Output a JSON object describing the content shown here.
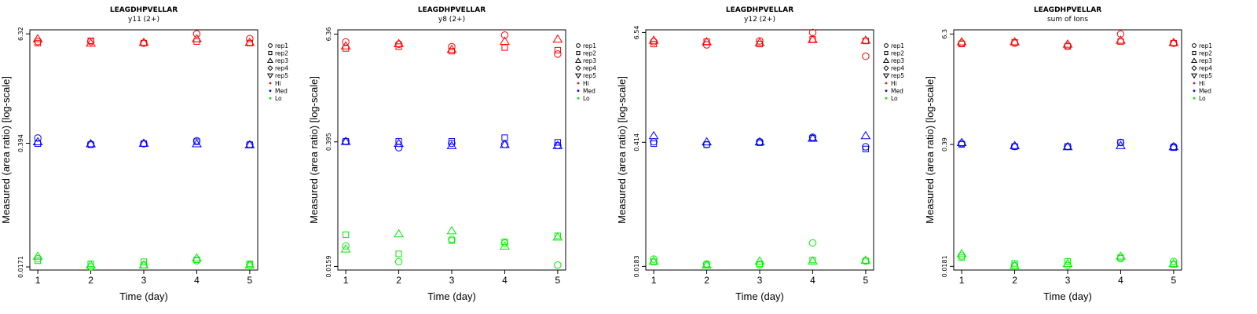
{
  "legend": {
    "shapes": [
      {
        "label": "rep1",
        "shape": "circle"
      },
      {
        "label": "rep2",
        "shape": "square"
      },
      {
        "label": "rep3",
        "shape": "triangle-up"
      },
      {
        "label": "rep4",
        "shape": "diamond"
      },
      {
        "label": "rep5",
        "shape": "triangle-down"
      }
    ],
    "levels": [
      {
        "label": "Hi",
        "color": "#ff0000"
      },
      {
        "label": "Med",
        "color": "#0000ff"
      },
      {
        "label": "Lo",
        "color": "#00ee00"
      }
    ]
  },
  "chart_data": [
    {
      "type": "scatter",
      "title": "LEAGDHPVELLAR",
      "subtitle": "y11 (2+)",
      "xlabel": "Time (day)",
      "ylabel": "Measured (area ratio) [log-scale]",
      "log_y": true,
      "xlim": [
        0.85,
        5.15
      ],
      "ylim": [
        0.0158,
        7.0
      ],
      "x_ticks": [
        "1",
        "2",
        "3",
        "4",
        "5"
      ],
      "y_ticks": [
        {
          "value": 0.0171,
          "label": "0.0171"
        },
        {
          "value": 0.394,
          "label": "0.394"
        },
        {
          "value": 6.32,
          "label": "6.32"
        }
      ],
      "grid": false,
      "legend_position": "right",
      "series": [
        {
          "rep": "rep1",
          "level": "Hi",
          "x": [
            1,
            2,
            3,
            4,
            5
          ],
          "y": [
            5.2,
            5.2,
            5.0,
            6.32,
            5.6
          ]
        },
        {
          "rep": "rep2",
          "level": "Hi",
          "x": [
            1,
            2,
            3,
            4,
            5
          ],
          "y": [
            5.0,
            5.3,
            5.0,
            5.2,
            5.0
          ]
        },
        {
          "rep": "rep3",
          "level": "Hi",
          "x": [
            1,
            2,
            3,
            4,
            5
          ],
          "y": [
            5.6,
            5.0,
            5.1,
            5.6,
            5.1
          ]
        },
        {
          "rep": "rep1",
          "level": "Med",
          "x": [
            1,
            2,
            3,
            4,
            5
          ],
          "y": [
            0.45,
            0.385,
            0.39,
            0.42,
            0.38
          ]
        },
        {
          "rep": "rep2",
          "level": "Med",
          "x": [
            1,
            2,
            3,
            4,
            5
          ],
          "y": [
            0.39,
            0.38,
            0.39,
            0.41,
            0.38
          ]
        },
        {
          "rep": "rep3",
          "level": "Med",
          "x": [
            1,
            2,
            3,
            4,
            5
          ],
          "y": [
            0.41,
            0.39,
            0.395,
            0.39,
            0.38
          ]
        },
        {
          "rep": "rep1",
          "level": "Lo",
          "x": [
            1,
            2,
            3,
            4,
            5
          ],
          "y": [
            0.021,
            0.0171,
            0.018,
            0.02,
            0.018
          ]
        },
        {
          "rep": "rep2",
          "level": "Lo",
          "x": [
            1,
            2,
            3,
            4,
            5
          ],
          "y": [
            0.02,
            0.0185,
            0.0195,
            0.0205,
            0.0185
          ]
        },
        {
          "rep": "rep3",
          "level": "Lo",
          "x": [
            1,
            2,
            3,
            4,
            5
          ],
          "y": [
            0.0225,
            0.018,
            0.018,
            0.0215,
            0.018
          ]
        }
      ]
    },
    {
      "type": "scatter",
      "title": "LEAGDHPVELLAR",
      "subtitle": "y8 (2+)",
      "xlabel": "Time (day)",
      "ylabel": "Measured (area ratio) [log-scale]",
      "log_y": true,
      "xlim": [
        0.85,
        5.15
      ],
      "ylim": [
        0.0145,
        7.1
      ],
      "x_ticks": [
        "1",
        "2",
        "3",
        "4",
        "5"
      ],
      "y_ticks": [
        {
          "value": 0.0159,
          "label": "0.0159"
        },
        {
          "value": 0.395,
          "label": "0.395"
        },
        {
          "value": 6.36,
          "label": "6.36"
        }
      ],
      "grid": false,
      "legend_position": "right",
      "series": [
        {
          "rep": "rep1",
          "level": "Hi",
          "x": [
            1,
            2,
            3,
            4,
            5
          ],
          "y": [
            5.2,
            4.9,
            4.6,
            6.2,
            3.8
          ]
        },
        {
          "rep": "rep2",
          "level": "Hi",
          "x": [
            1,
            2,
            3,
            4,
            5
          ],
          "y": [
            4.4,
            4.6,
            4.1,
            4.5,
            4.2
          ]
        },
        {
          "rep": "rep3",
          "level": "Hi",
          "x": [
            1,
            2,
            3,
            4,
            5
          ],
          "y": [
            4.7,
            5.0,
            4.3,
            5.3,
            5.6
          ]
        },
        {
          "rep": "rep1",
          "level": "Med",
          "x": [
            1,
            2,
            3,
            4,
            5
          ],
          "y": [
            0.4,
            0.34,
            0.38,
            0.37,
            0.36
          ]
        },
        {
          "rep": "rep2",
          "level": "Med",
          "x": [
            1,
            2,
            3,
            4,
            5
          ],
          "y": [
            0.4,
            0.4,
            0.4,
            0.44,
            0.39
          ]
        },
        {
          "rep": "rep3",
          "level": "Med",
          "x": [
            1,
            2,
            3,
            4,
            5
          ],
          "y": [
            0.4,
            0.38,
            0.36,
            0.37,
            0.36
          ]
        },
        {
          "rep": "rep1",
          "level": "Lo",
          "x": [
            1,
            2,
            3,
            4,
            5
          ],
          "y": [
            0.027,
            0.018,
            0.032,
            0.029,
            0.0165
          ]
        },
        {
          "rep": "rep2",
          "level": "Lo",
          "x": [
            1,
            2,
            3,
            4,
            5
          ],
          "y": [
            0.036,
            0.022,
            0.031,
            0.03,
            0.035
          ]
        },
        {
          "rep": "rep3",
          "level": "Lo",
          "x": [
            1,
            2,
            3,
            4,
            5
          ],
          "y": [
            0.025,
            0.037,
            0.04,
            0.027,
            0.034
          ]
        }
      ]
    },
    {
      "type": "scatter",
      "title": "LEAGDHPVELLAR",
      "subtitle": "y12 (2+)",
      "xlabel": "Time (day)",
      "ylabel": "Measured (area ratio) [log-scale]",
      "log_y": true,
      "xlim": [
        0.85,
        5.15
      ],
      "ylim": [
        0.0167,
        7.0
      ],
      "x_ticks": [
        "1",
        "2",
        "3",
        "4",
        "5"
      ],
      "y_ticks": [
        {
          "value": 0.0183,
          "label": "0.0183"
        },
        {
          "value": 0.414,
          "label": "0.414"
        },
        {
          "value": 6.54,
          "label": "6.54"
        }
      ],
      "grid": false,
      "legend_position": "right",
      "series": [
        {
          "rep": "rep1",
          "level": "Hi",
          "x": [
            1,
            2,
            3,
            4,
            5
          ],
          "y": [
            5.2,
            4.8,
            5.3,
            6.54,
            3.6
          ]
        },
        {
          "rep": "rep2",
          "level": "Hi",
          "x": [
            1,
            2,
            3,
            4,
            5
          ],
          "y": [
            4.9,
            5.2,
            4.9,
            5.5,
            5.3
          ]
        },
        {
          "rep": "rep3",
          "level": "Hi",
          "x": [
            1,
            2,
            3,
            4,
            5
          ],
          "y": [
            5.4,
            5.2,
            5.1,
            5.5,
            5.4
          ]
        },
        {
          "rep": "rep1",
          "level": "Med",
          "x": [
            1,
            2,
            3,
            4,
            5
          ],
          "y": [
            0.42,
            0.39,
            0.42,
            0.47,
            0.37
          ]
        },
        {
          "rep": "rep2",
          "level": "Med",
          "x": [
            1,
            2,
            3,
            4,
            5
          ],
          "y": [
            0.4,
            0.39,
            0.41,
            0.46,
            0.35
          ]
        },
        {
          "rep": "rep3",
          "level": "Med",
          "x": [
            1,
            2,
            3,
            4,
            5
          ],
          "y": [
            0.49,
            0.42,
            0.42,
            0.46,
            0.49
          ]
        },
        {
          "rep": "rep1",
          "level": "Lo",
          "x": [
            1,
            2,
            3,
            4,
            5
          ],
          "y": [
            0.022,
            0.0195,
            0.019,
            0.033,
            0.021
          ]
        },
        {
          "rep": "rep2",
          "level": "Lo",
          "x": [
            1,
            2,
            3,
            4,
            5
          ],
          "y": [
            0.0205,
            0.019,
            0.0195,
            0.0215,
            0.021
          ]
        },
        {
          "rep": "rep3",
          "level": "Lo",
          "x": [
            1,
            2,
            3,
            4,
            5
          ],
          "y": [
            0.021,
            0.019,
            0.021,
            0.021,
            0.0215
          ]
        }
      ]
    },
    {
      "type": "scatter",
      "title": "LEAGDHPVELLAR",
      "subtitle": "sum of Ions",
      "xlabel": "Time (day)",
      "ylabel": "Measured (area ratio) [log-scale]",
      "log_y": true,
      "xlim": [
        0.85,
        5.15
      ],
      "ylim": [
        0.0165,
        7.0
      ],
      "x_ticks": [
        "1",
        "2",
        "3",
        "4",
        "5"
      ],
      "y_ticks": [
        {
          "value": 0.0181,
          "label": "0.0181"
        },
        {
          "value": 0.39,
          "label": "0.39"
        },
        {
          "value": 6.3,
          "label": "6.3"
        }
      ],
      "grid": false,
      "legend_position": "right",
      "series": [
        {
          "rep": "rep1",
          "level": "Hi",
          "x": [
            1,
            2,
            3,
            4,
            5
          ],
          "y": [
            5.0,
            5.0,
            4.7,
            6.3,
            5.0
          ]
        },
        {
          "rep": "rep2",
          "level": "Hi",
          "x": [
            1,
            2,
            3,
            4,
            5
          ],
          "y": [
            4.9,
            5.1,
            4.6,
            5.2,
            5.0
          ]
        },
        {
          "rep": "rep3",
          "level": "Hi",
          "x": [
            1,
            2,
            3,
            4,
            5
          ],
          "y": [
            5.2,
            5.2,
            4.9,
            5.4,
            5.1
          ]
        },
        {
          "rep": "rep1",
          "level": "Med",
          "x": [
            1,
            2,
            3,
            4,
            5
          ],
          "y": [
            0.4,
            0.37,
            0.37,
            0.41,
            0.37
          ]
        },
        {
          "rep": "rep2",
          "level": "Med",
          "x": [
            1,
            2,
            3,
            4,
            5
          ],
          "y": [
            0.39,
            0.37,
            0.37,
            0.41,
            0.36
          ]
        },
        {
          "rep": "rep3",
          "level": "Med",
          "x": [
            1,
            2,
            3,
            4,
            5
          ],
          "y": [
            0.41,
            0.38,
            0.37,
            0.38,
            0.37
          ]
        },
        {
          "rep": "rep1",
          "level": "Lo",
          "x": [
            1,
            2,
            3,
            4,
            5
          ],
          "y": [
            0.0235,
            0.0185,
            0.0185,
            0.022,
            0.0205
          ]
        },
        {
          "rep": "rep2",
          "level": "Lo",
          "x": [
            1,
            2,
            3,
            4,
            5
          ],
          "y": [
            0.0225,
            0.0195,
            0.0205,
            0.0225,
            0.019
          ]
        },
        {
          "rep": "rep3",
          "level": "Lo",
          "x": [
            1,
            2,
            3,
            4,
            5
          ],
          "y": [
            0.025,
            0.0185,
            0.0195,
            0.0235,
            0.0195
          ]
        }
      ]
    }
  ]
}
